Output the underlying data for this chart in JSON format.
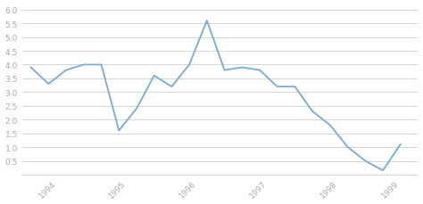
{
  "x": [
    0,
    1,
    2,
    3,
    4,
    5,
    6,
    7,
    8,
    9,
    10,
    11,
    12,
    13,
    14,
    15,
    16,
    17,
    18,
    19,
    20,
    21
  ],
  "y": [
    3.9,
    3.3,
    3.8,
    4.0,
    4.0,
    1.6,
    2.4,
    3.6,
    3.2,
    4.0,
    5.6,
    3.8,
    3.9,
    3.8,
    3.2,
    3.2,
    2.3,
    1.8,
    1.0,
    0.5,
    0.15,
    1.1
  ],
  "xtick_positions": [
    1.5,
    5.5,
    9.5,
    13.5,
    17.5,
    21.0
  ],
  "xtick_labels": [
    "1994",
    "1995",
    "1996",
    "1997",
    "1998",
    "1999"
  ],
  "yticks": [
    0.5,
    1.0,
    1.5,
    2.0,
    2.5,
    3.0,
    3.5,
    4.0,
    4.5,
    5.0,
    5.5,
    6.0
  ],
  "ylim": [
    0,
    6.2
  ],
  "xlim": [
    -0.5,
    22.0
  ],
  "line_color": "#7aaad4",
  "line_width": 1.3,
  "bg_color": "#ffffff",
  "grid_color": "#d0d0d0"
}
